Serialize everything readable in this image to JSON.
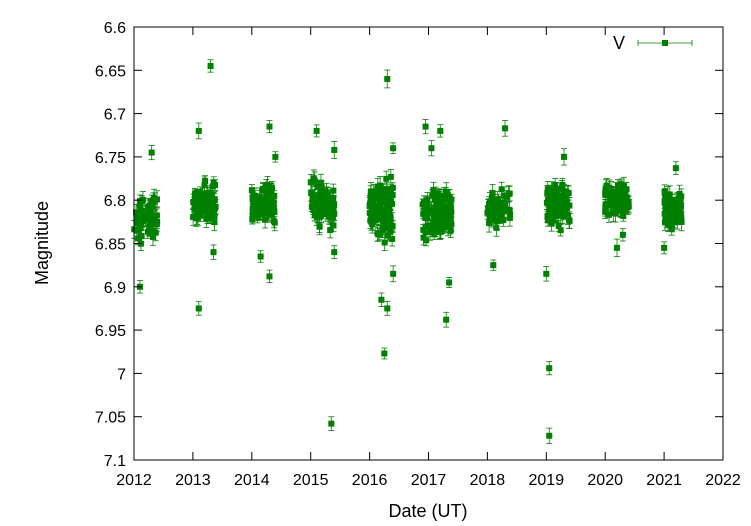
{
  "chart_data": {
    "type": "scatter",
    "xlabel": "Date (UT)",
    "ylabel": "Magnitude",
    "xlim": [
      2012,
      2022
    ],
    "ylim": [
      6.6,
      7.1
    ],
    "y_inverted": true,
    "x_ticks": [
      "2012",
      "2013",
      "2014",
      "2015",
      "2016",
      "2017",
      "2018",
      "2019",
      "2020",
      "2021",
      "2022"
    ],
    "y_ticks": [
      "6.6",
      "6.65",
      "6.7",
      "6.75",
      "6.8",
      "6.85",
      "6.9",
      "6.95",
      "7",
      "7.05",
      "7.1"
    ],
    "legend": {
      "position": "top-right"
    },
    "series_color": "#008000",
    "series": [
      {
        "name": "V",
        "error_bars": true,
        "seasons": [
          {
            "x_range": [
              2012.0,
              2012.4
            ],
            "y_center": 6.82,
            "y_spread": 0.03,
            "n": 60
          },
          {
            "x_range": [
              2013.0,
              2013.4
            ],
            "y_center": 6.805,
            "y_spread": 0.03,
            "n": 70
          },
          {
            "x_range": [
              2014.0,
              2014.4
            ],
            "y_center": 6.805,
            "y_spread": 0.025,
            "n": 80
          },
          {
            "x_range": [
              2015.0,
              2015.4
            ],
            "y_center": 6.805,
            "y_spread": 0.03,
            "n": 90
          },
          {
            "x_range": [
              2016.0,
              2016.4
            ],
            "y_center": 6.81,
            "y_spread": 0.04,
            "n": 110
          },
          {
            "x_range": [
              2016.9,
              2017.4
            ],
            "y_center": 6.815,
            "y_spread": 0.035,
            "n": 110
          },
          {
            "x_range": [
              2018.0,
              2018.4
            ],
            "y_center": 6.81,
            "y_spread": 0.025,
            "n": 50
          },
          {
            "x_range": [
              2019.0,
              2019.4
            ],
            "y_center": 6.805,
            "y_spread": 0.025,
            "n": 80
          },
          {
            "x_range": [
              2020.0,
              2020.4
            ],
            "y_center": 6.8,
            "y_spread": 0.02,
            "n": 80
          },
          {
            "x_range": [
              2021.0,
              2021.3
            ],
            "y_center": 6.81,
            "y_spread": 0.025,
            "n": 70
          }
        ],
        "points": [
          [
            2012.1,
            6.9
          ],
          [
            2012.3,
            6.745
          ],
          [
            2013.1,
            6.72
          ],
          [
            2013.1,
            6.925
          ],
          [
            2013.3,
            6.645
          ],
          [
            2013.35,
            6.86
          ],
          [
            2014.15,
            6.865
          ],
          [
            2014.3,
            6.715
          ],
          [
            2014.3,
            6.888
          ],
          [
            2014.4,
            6.75
          ],
          [
            2015.1,
            6.72
          ],
          [
            2015.35,
            7.058
          ],
          [
            2015.4,
            6.742
          ],
          [
            2015.4,
            6.86
          ],
          [
            2016.2,
            6.915
          ],
          [
            2016.25,
            6.977
          ],
          [
            2016.3,
            6.66
          ],
          [
            2016.3,
            6.925
          ],
          [
            2016.4,
            6.885
          ],
          [
            2016.4,
            6.74
          ],
          [
            2016.95,
            6.715
          ],
          [
            2017.05,
            6.74
          ],
          [
            2017.2,
            6.72
          ],
          [
            2017.3,
            6.938
          ],
          [
            2017.35,
            6.895
          ],
          [
            2018.1,
            6.875
          ],
          [
            2018.3,
            6.717
          ],
          [
            2019.0,
            6.885
          ],
          [
            2019.05,
            6.994
          ],
          [
            2019.05,
            7.072
          ],
          [
            2019.3,
            6.75
          ],
          [
            2020.2,
            6.855
          ],
          [
            2020.3,
            6.84
          ],
          [
            2021.0,
            6.855
          ],
          [
            2021.2,
            6.763
          ]
        ]
      }
    ]
  }
}
